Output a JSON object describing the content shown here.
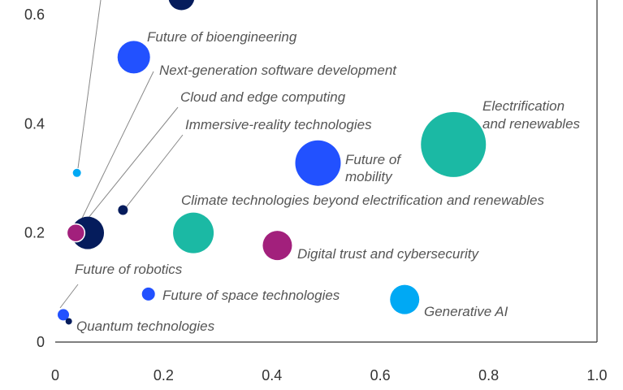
{
  "chart_data": {
    "type": "bubble",
    "xlim": [
      0,
      1.0
    ],
    "ylim": [
      0,
      0.6
    ],
    "x_ticks": [
      "0",
      "0.2",
      "0.4",
      "0.6",
      "0.8",
      "1.0"
    ],
    "y_ticks": [
      "0",
      "0.2",
      "0.4",
      "0.6"
    ],
    "grid": false,
    "points": [
      {
        "name": "Future of  bioengineering",
        "x": 0.145,
        "y": 0.522,
        "size": 20,
        "color": "#2251ff"
      },
      {
        "name": "Next-generation software development",
        "x": 0.04,
        "y": 0.31,
        "size": 5,
        "color": "#00a9f4"
      },
      {
        "name": "Cloud and edge computing",
        "x": 0.06,
        "y": 0.2,
        "size": 20,
        "color": "#051c5c"
      },
      {
        "name": "Immersive-reality technologies",
        "x": 0.125,
        "y": 0.242,
        "size": 6,
        "color": "#051c5c"
      },
      {
        "name": "Future of robotics",
        "x": 0.038,
        "y": 0.2,
        "size": 11,
        "color": "#a2207c"
      },
      {
        "name": "Climate technologies beyond electrification and renewables",
        "x": 0.255,
        "y": 0.2,
        "size": 25,
        "color": "#1bb9a4"
      },
      {
        "name": "Electrification and renewables",
        "x": 0.735,
        "y": 0.362,
        "size": 40,
        "color": "#1bb9a4"
      },
      {
        "name": "Future of mobility",
        "x": 0.485,
        "y": 0.328,
        "size": 28,
        "color": "#2251ff"
      },
      {
        "name": "Digital trust and cybersecurity",
        "x": 0.41,
        "y": 0.177,
        "size": 18,
        "color": "#a2207c"
      },
      {
        "name": "Future of space technologies",
        "x": 0.172,
        "y": 0.088,
        "size": 8,
        "color": "#2251ff"
      },
      {
        "name": "Generative AI",
        "x": 0.645,
        "y": 0.078,
        "size": 18,
        "color": "#00a9f4"
      },
      {
        "name": "Quantum technologies",
        "x": 0.025,
        "y": 0.038,
        "size": 4,
        "color": "#051c5c"
      },
      {
        "name": "",
        "x": 0.015,
        "y": 0.05,
        "size": 7,
        "color": "#2251ff"
      },
      {
        "name": "",
        "x": 0.233,
        "y": 0.632,
        "size": 16,
        "color": "#051c5c"
      }
    ]
  }
}
